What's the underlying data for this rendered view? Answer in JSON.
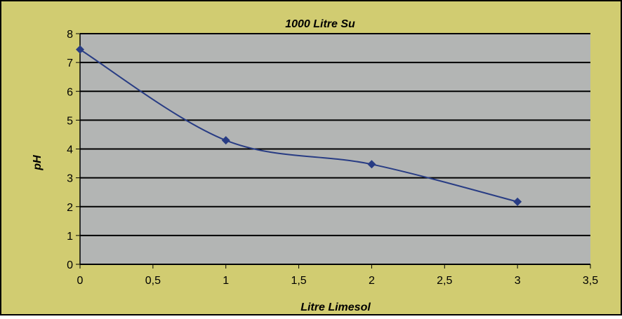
{
  "chart_data": {
    "type": "scatter",
    "title": "1000 Litre Su",
    "xlabel": "Litre Limesol",
    "ylabel": "pH",
    "xlim": [
      0,
      3.5
    ],
    "ylim": [
      0,
      8
    ],
    "x_ticks": [
      "0",
      "0,5",
      "1",
      "1,5",
      "2",
      "2,5",
      "3",
      "3,5"
    ],
    "y_ticks": [
      "0",
      "1",
      "2",
      "3",
      "4",
      "5",
      "6",
      "7",
      "8"
    ],
    "grid": "horizontal",
    "smooth_line": true,
    "series": [
      {
        "x": [
          0,
          1,
          2,
          3
        ],
        "y": [
          7.45,
          4.3,
          3.47,
          2.17
        ]
      }
    ],
    "colors": {
      "background": "#D1CC71",
      "plot_area": "#B3B5B4",
      "series": "#283C84",
      "gridline": "#000000"
    }
  }
}
